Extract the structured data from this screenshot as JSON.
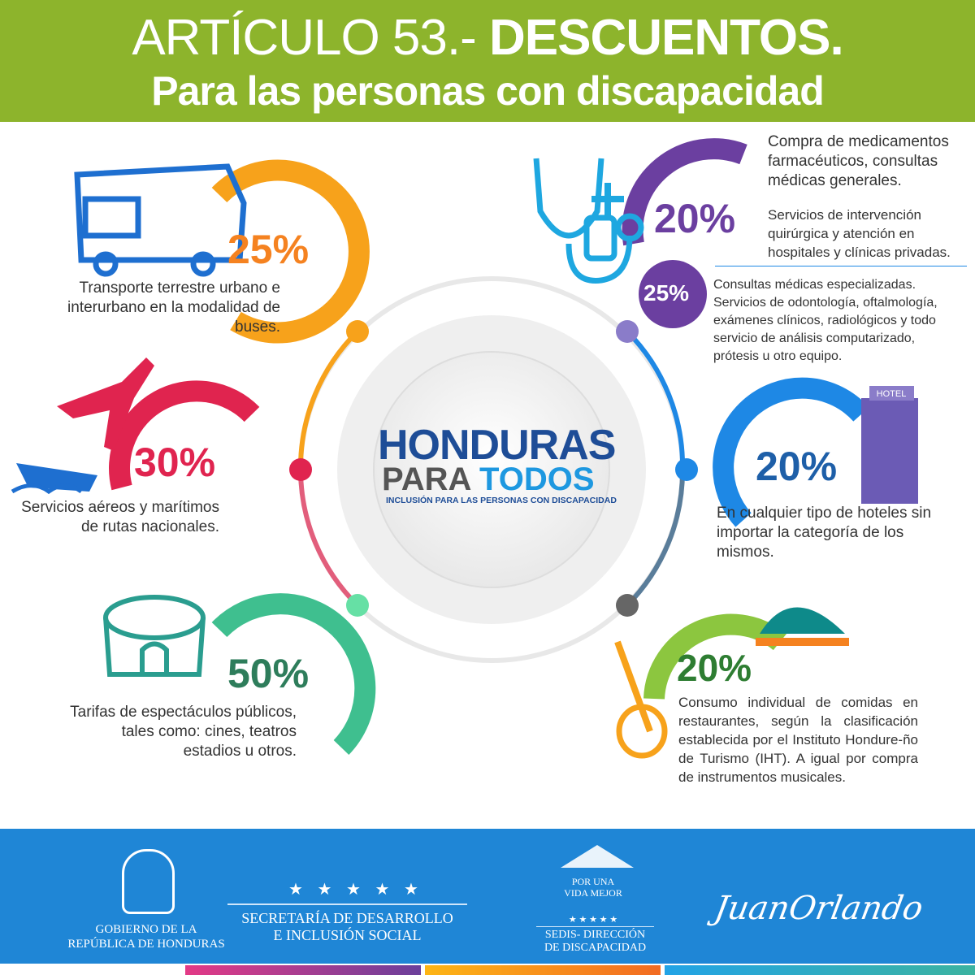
{
  "header": {
    "title_light": "ARTÍCULO 53.-",
    "title_bold": "DESCUENTOS.",
    "subtitle": "Para las personas con discapacidad"
  },
  "colors": {
    "header_bg": "#8db42c",
    "footer_bg": "#1f86d6",
    "orange": "#f7a21b",
    "red": "#e0244f",
    "green": "#3fbf8f",
    "purple": "#6b3fa0",
    "blue": "#1e88e5",
    "dark_green": "#2e7d32"
  },
  "center_logo": {
    "line1": "HONDURAS",
    "line2a": "PARA",
    "line2b": "TODOS",
    "tagline": "INCLUSIÓN PARA LAS PERSONAS CON DISCAPACIDAD"
  },
  "items": [
    {
      "icon": "bus-icon",
      "percent": "25%",
      "text": "Transporte terrestre urbano  e interurbano en la modalidad de buses."
    },
    {
      "icon": "plane-ship-icon",
      "percent": "30%",
      "text": "Servicios aéreos y marítimos de rutas nacionales."
    },
    {
      "icon": "stadium-icon",
      "percent": "50%",
      "text": "Tarifas de espectáculos públicos, tales como: cines, teatros estadios u otros."
    },
    {
      "icon": "stethoscope-icon",
      "percent": "20%",
      "text": "Compra de medicamentos farmacéuticos, consultas médicas generales.",
      "text2": "Servicios de intervención quirúrgica y atención en hospitales y clínicas privadas.",
      "percent2": "25%",
      "text3": "Consultas médicas especializadas. Servicios de odontología, oftalmología, exámenes clínicos, radiológicos y todo servicio de análisis computarizado, prótesis u otro equipo."
    },
    {
      "icon": "hotel-icon",
      "percent": "20%",
      "hotel_label": "HOTEL",
      "text": "En cualquier tipo de hoteles sin importar la categoría de los mismos."
    },
    {
      "icon": "restaurant-guitar-icon",
      "percent": "20%",
      "text": "Consumo individual de comidas en restaurantes, según la clasificación establecida por el Instituto Hondure-ño de Turismo (IHT). A igual por compra de instrumentos musicales."
    }
  ],
  "footer": {
    "gov": [
      "GOBIERNO DE LA",
      "REPÚBLICA DE HONDURAS"
    ],
    "sedis": [
      "SECRETARÍA DE DESARROLLO",
      "E INCLUSIÓN SOCIAL"
    ],
    "vida": [
      "POR UNA",
      "VIDA MEJOR"
    ],
    "dir": [
      "SEDIS- DIRECCIÓN",
      "DE DISCAPACIDAD"
    ],
    "signature": "JuanOrlando"
  }
}
